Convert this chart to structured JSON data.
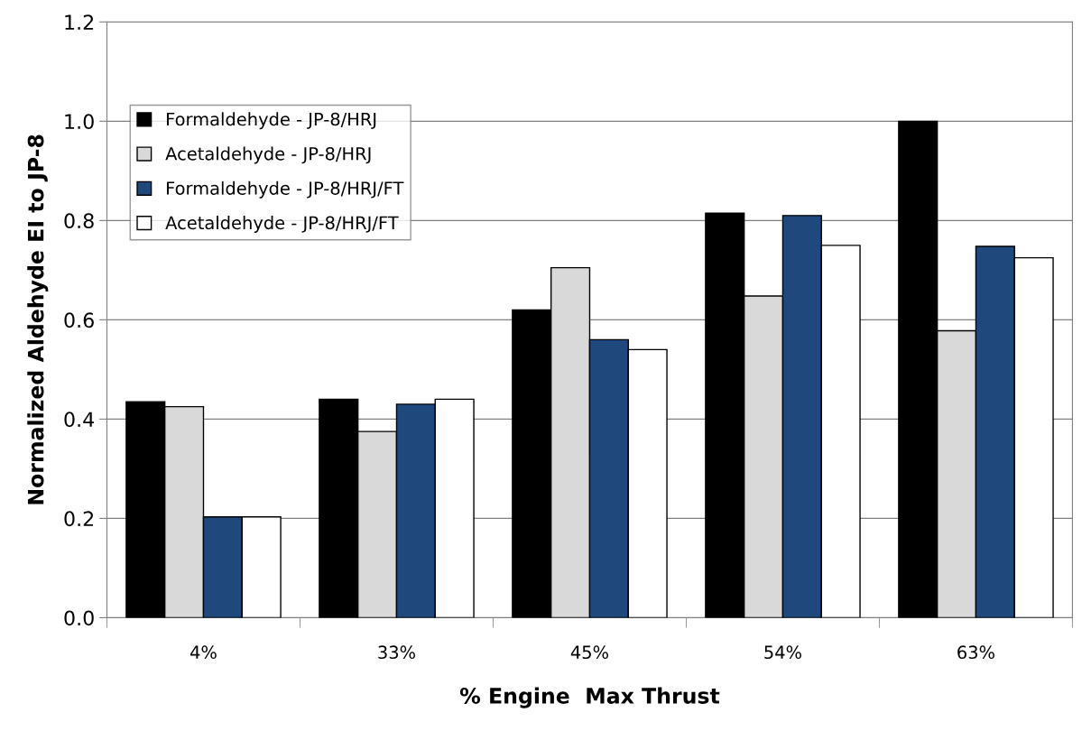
{
  "chart_data": {
    "type": "bar",
    "xlabel": "% Engine  Max Thrust",
    "ylabel": "Normalized Aldehyde EI to JP-8",
    "categories": [
      "4%",
      "33%",
      "45%",
      "54%",
      "63%"
    ],
    "series": [
      {
        "name": "Formaldehyde - JP-8/HRJ",
        "color": "#000000",
        "values": [
          0.435,
          0.44,
          0.62,
          0.815,
          1.0
        ]
      },
      {
        "name": "Acetaldehyde - JP-8/HRJ",
        "color": "#d9d9d9",
        "values": [
          0.425,
          0.375,
          0.705,
          0.648,
          0.578
        ]
      },
      {
        "name": "Formaldehyde - JP-8/HRJ/FT",
        "color": "#1f497d",
        "values": [
          0.203,
          0.43,
          0.56,
          0.81,
          0.748
        ]
      },
      {
        "name": "Acetaldehyde - JP-8/HRJ/FT",
        "color": "#ffffff",
        "values": [
          0.203,
          0.44,
          0.54,
          0.75,
          0.725
        ]
      }
    ],
    "ylim": [
      0,
      1.2
    ],
    "yticks": [
      {
        "value": 0,
        "label": "0.0"
      },
      {
        "value": 0.2,
        "label": "0.2"
      },
      {
        "value": 0.4,
        "label": "0.4"
      },
      {
        "value": 0.6,
        "label": "0.6"
      },
      {
        "value": 0.8,
        "label": "0.8"
      },
      {
        "value": 1.0,
        "label": "1.0"
      },
      {
        "value": 1.2,
        "label": "1.2"
      }
    ],
    "grid": "y",
    "legend": "top left"
  }
}
